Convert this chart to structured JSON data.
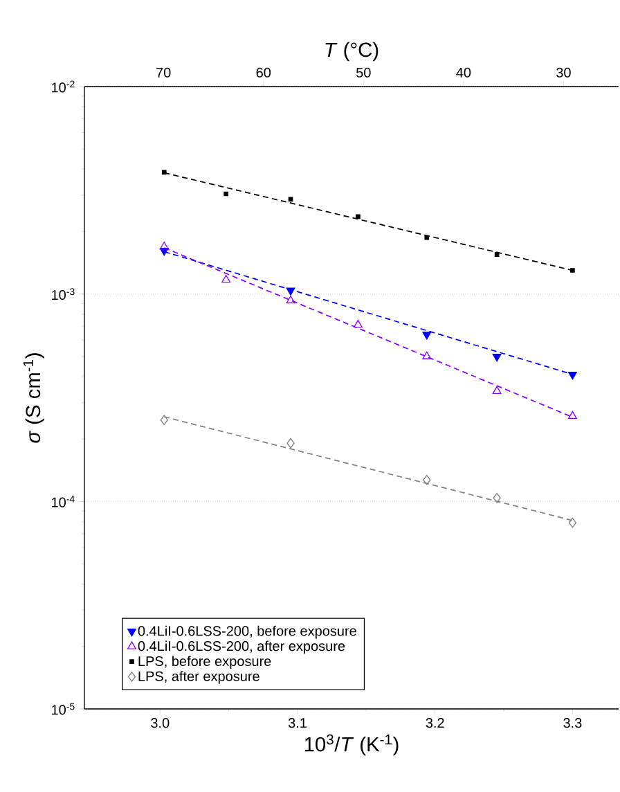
{
  "chart_data": {
    "type": "scatter",
    "xlabel": "10$^{3}$/*T* (K$^{-1}$)",
    "ylabel": "*σ* (S cm$^{-1}$)",
    "x2label": "*T* (°C)",
    "log": "y",
    "grid": "y",
    "legend": "bottom left",
    "line_style": "dashed",
    "xlim": [
      2.945,
      3.3335
    ],
    "xticks": [
      {
        "value": 3.0,
        "label": "3.0"
      },
      {
        "value": 3.1,
        "label": "3.1"
      },
      {
        "value": 3.2,
        "label": "3.2"
      },
      {
        "value": 3.3,
        "label": "3.3"
      }
    ],
    "x2lim": [
      77.9,
      24.5
    ],
    "x2ticks": [
      70,
      60,
      50,
      40,
      30
    ],
    "ylim": [
      1e-05,
      0.01
    ],
    "yticks": [
      {
        "value": 1e-05,
        "label": "10$^{-5}$"
      },
      {
        "value": 0.0001,
        "label": "10$^{-4}$"
      },
      {
        "value": 0.001,
        "label": "10$^{-3}$"
      },
      {
        "value": 0.01,
        "label": "10$^{-2}$"
      }
    ],
    "series": [
      {
        "name": "0.4LiI-0.6LSS-200, before exposure",
        "color": "#0000ff",
        "marker": "triangle-down",
        "x": [
          3.003,
          3.095,
          3.194,
          3.245,
          3.3
        ],
        "values": [
          0.00162,
          0.00104,
          0.000638,
          0.0005,
          0.000409
        ]
      },
      {
        "name": "0.4LiI-0.6LSS-200, after exposure",
        "color": "#8b00ff",
        "marker": "triangle",
        "x": [
          3.003,
          3.048,
          3.095,
          3.144,
          3.194,
          3.245,
          3.3
        ],
        "values": [
          0.00169,
          0.00117,
          0.00093,
          0.00071,
          0.0005,
          0.00034,
          0.000258
        ]
      },
      {
        "name": "LPS, before exposure",
        "color": "#000000",
        "marker": "square",
        "x": [
          3.003,
          3.048,
          3.095,
          3.144,
          3.194,
          3.245,
          3.3
        ],
        "values": [
          0.00386,
          0.00304,
          0.00286,
          0.00236,
          0.00187,
          0.00155,
          0.0013
        ]
      },
      {
        "name": "LPS, after exposure",
        "color": "#808080",
        "marker": "diamond",
        "x": [
          3.003,
          3.095,
          3.194,
          3.245,
          3.3
        ],
        "values": [
          0.000247,
          0.000191,
          0.000127,
          0.000104,
          7.9e-05
        ]
      },
      {
        "type": "line",
        "color": "#0000ff",
        "x": [
          3.003,
          3.3
        ],
        "values": [
          0.0016,
          0.00041
        ]
      },
      {
        "type": "line",
        "color": "#8b00ff",
        "x": [
          3.003,
          3.3
        ],
        "values": [
          0.00167,
          0.000255
        ]
      },
      {
        "type": "line",
        "color": "#000000",
        "x": [
          3.003,
          3.3
        ],
        "values": [
          0.00384,
          0.0013
        ]
      },
      {
        "type": "line",
        "color": "#808080",
        "x": [
          3.003,
          3.3
        ],
        "values": [
          0.000256,
          8.1e-05
        ]
      }
    ]
  }
}
